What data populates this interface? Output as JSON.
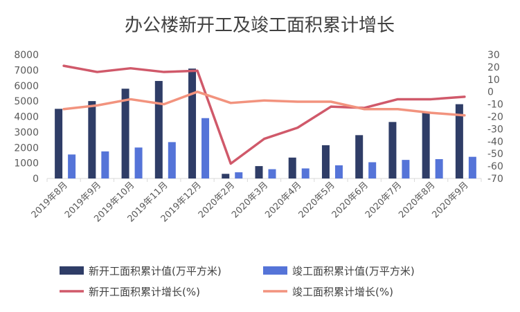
{
  "chart_data": {
    "type": "bar",
    "title": "办公楼新开工及竣工面积累计增长",
    "categories": [
      "2019年8月",
      "2019年9月",
      "2019年10月",
      "2019年11月",
      "2019年12月",
      "2020年2月",
      "2020年3月",
      "2020年4月",
      "2020年5月",
      "2020年6月",
      "2020年7月",
      "2020年8月",
      "2020年9月"
    ],
    "left_axis": {
      "min": 0,
      "max": 8000,
      "step": 1000,
      "ticks": [
        "0",
        "1000",
        "2000",
        "3000",
        "4000",
        "5000",
        "6000",
        "7000",
        "8000"
      ]
    },
    "right_axis": {
      "min": -70,
      "max": 30,
      "step": 10,
      "ticks": [
        "-70",
        "-60",
        "-50",
        "-40",
        "-30",
        "-20",
        "-10",
        "0",
        "10",
        "20",
        "30"
      ]
    },
    "grid": false,
    "legend_position": "bottom",
    "series": [
      {
        "name": "新开工面积累计值(万平方米)",
        "type": "bar",
        "axis": "left",
        "color": "#2f3d67",
        "values": [
          4500,
          5000,
          5800,
          6300,
          7100,
          300,
          800,
          1350,
          2150,
          2800,
          3650,
          4250,
          4800
        ]
      },
      {
        "name": "竣工面积累计值(万平方米)",
        "type": "bar",
        "axis": "left",
        "color": "#5574d8",
        "values": [
          1550,
          1750,
          2000,
          2350,
          3900,
          400,
          600,
          650,
          850,
          1050,
          1200,
          1250,
          1400
        ]
      },
      {
        "name": "新开工面积累计增长(%)",
        "type": "line",
        "axis": "right",
        "color": "#d0596a",
        "values": [
          21,
          16,
          19,
          16,
          17,
          -58,
          -38,
          -29,
          -12,
          -13,
          -6,
          -6,
          -4
        ]
      },
      {
        "name": "竣工面积累计增长(%)",
        "type": "line",
        "axis": "right",
        "color": "#f2937e",
        "values": [
          -14,
          -11,
          -6,
          -10,
          0,
          -9,
          -7,
          -8,
          -8,
          -14,
          -14,
          -17,
          -19
        ]
      }
    ]
  }
}
